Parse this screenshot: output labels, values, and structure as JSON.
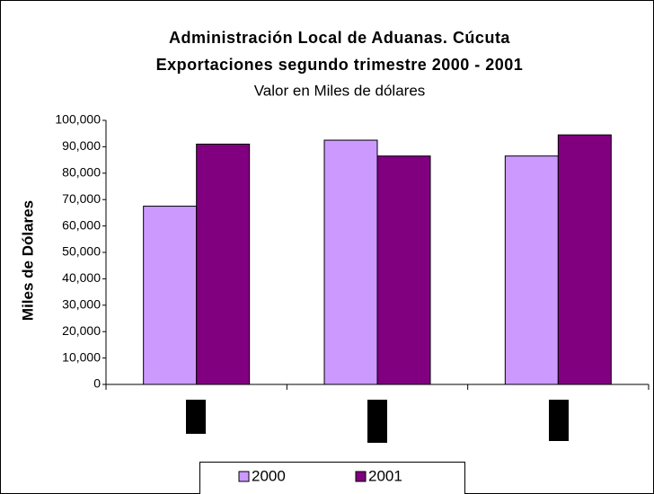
{
  "chart_data": {
    "type": "bar",
    "title": "Administración Local de Aduanas. Cúcuta",
    "subtitle": "Exportaciones segundo trimestre 2000 - 2001",
    "note": "Valor en Miles de dólares",
    "y_label": "Miles de Dólares",
    "categories": [
      null,
      null,
      null
    ],
    "series": [
      {
        "name": "2000",
        "color": "#cc99ff",
        "values": [
          67500,
          92500,
          86500
        ]
      },
      {
        "name": "2001",
        "color": "#800080",
        "values": [
          91000,
          86500,
          94500
        ]
      }
    ],
    "ylim": [
      0,
      100000
    ],
    "yticks": [
      0,
      {
        "value": 10000,
        "label": "10,000"
      },
      {
        "value": 20000,
        "label": "20,000"
      },
      {
        "value": 30000,
        "label": "30,000"
      },
      {
        "value": 40000,
        "label": "40,000"
      },
      {
        "value": 50000,
        "label": "50,000"
      },
      {
        "value": 60000,
        "label": "60,000"
      },
      {
        "value": 70000,
        "label": "70,000"
      },
      {
        "value": 80000,
        "label": "80,000"
      },
      {
        "value": 90000,
        "label": "90,000"
      },
      {
        "value": 100000,
        "label": "100,000"
      }
    ],
    "legend": "bottom"
  }
}
